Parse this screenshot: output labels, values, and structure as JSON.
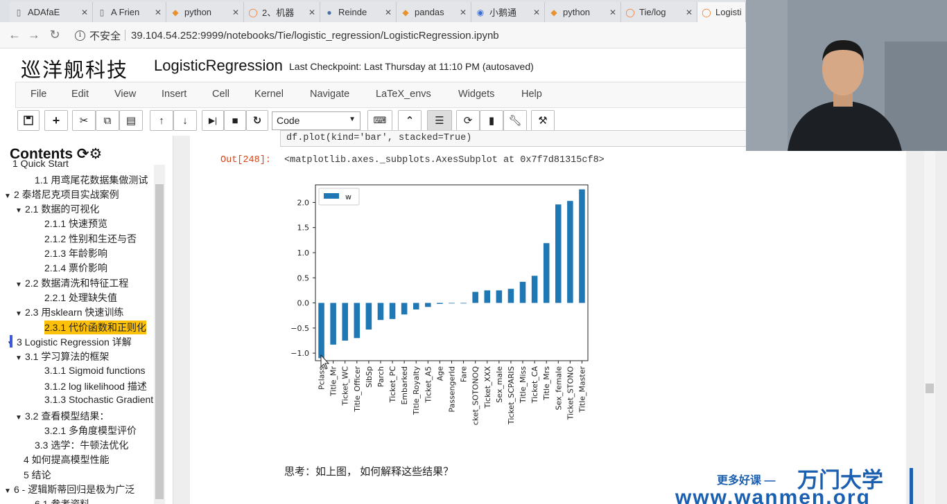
{
  "browser": {
    "tabs": [
      {
        "title": "ADAfaE",
        "icon": "document-icon",
        "active": false
      },
      {
        "title": "A Frien",
        "icon": "document-icon",
        "active": false
      },
      {
        "title": "python",
        "icon": "tag-icon",
        "active": false
      },
      {
        "title": "2、机器",
        "icon": "jupyter-icon",
        "active": false
      },
      {
        "title": "Reinde",
        "icon": "github-icon",
        "active": false
      },
      {
        "title": "pandas",
        "icon": "tag-icon",
        "active": false
      },
      {
        "title": "小鹅通",
        "icon": "chrome-icon",
        "active": false
      },
      {
        "title": "python",
        "icon": "tag-icon",
        "active": false
      },
      {
        "title": "Tie/log",
        "icon": "jupyter-icon",
        "active": false
      },
      {
        "title": "Logistic",
        "icon": "jupyter-icon",
        "active": true
      }
    ],
    "security_label": "不安全",
    "url": "39.104.54.252:9999/notebooks/Tie/logistic_regression/LogisticRegression.ipynb"
  },
  "header": {
    "logo_text": "巡洋舰科技",
    "notebook_title": "LogisticRegression",
    "checkpoint": "Last Checkpoint: Last Thursday at 11:10 PM (autosaved)"
  },
  "menu": [
    "File",
    "Edit",
    "View",
    "Insert",
    "Cell",
    "Kernel",
    "Navigate",
    "LaTeX_envs",
    "Widgets",
    "Help"
  ],
  "toolbar": {
    "cell_type": "Code"
  },
  "toc": {
    "title": "Contents",
    "items": [
      {
        "text": "1  Quick Start",
        "caret": ""
      },
      {
        "text": "1.1  用鸢尾花数据集做测试",
        "caret": ""
      },
      {
        "text": "2  泰塔尼克项目实战案例",
        "caret": "▼"
      },
      {
        "text": "2.1  数据的可视化",
        "caret": "▼"
      },
      {
        "text": "2.1.1  快速预览",
        "caret": ""
      },
      {
        "text": "2.1.2  性别和生还与否",
        "caret": ""
      },
      {
        "text": "2.1.3  年龄影响",
        "caret": ""
      },
      {
        "text": "2.1.4  票价影响",
        "caret": ""
      },
      {
        "text": "2.2  数据清洗和特征工程",
        "caret": "▼"
      },
      {
        "text": "2.2.1  处理缺失值",
        "caret": ""
      },
      {
        "text": "2.3  用sklearn 快速训练",
        "caret": "▼"
      },
      {
        "text": "2.3.1  代价函数和正则化",
        "caret": ""
      },
      {
        "text": "3  Logistic Regression 详解",
        "caret": "▼"
      },
      {
        "text": "3.1  学习算法的框架",
        "caret": "▼"
      },
      {
        "text": "3.1.1  Sigmoid functions",
        "caret": ""
      },
      {
        "text": "3.1.2  log likelihood 描述",
        "caret": ""
      },
      {
        "text": "3.1.3  Stochastic Gradient",
        "caret": ""
      },
      {
        "text": "3.2  查看模型结果：",
        "caret": "▼"
      },
      {
        "text": "3.2.1  多角度模型评价",
        "caret": ""
      },
      {
        "text": "3.3  选学：牛顿法优化",
        "caret": ""
      },
      {
        "text": "4  如何提高模型性能",
        "caret": ""
      },
      {
        "text": "5  结论",
        "caret": ""
      },
      {
        "text": "6  - 逻辑斯蒂回归是极为广泛",
        "caret": "▼"
      },
      {
        "text": "6.1  参考资料",
        "caret": ""
      }
    ]
  },
  "cell": {
    "code": "df.plot(kind='bar', stacked=True)",
    "out_prompt": "Out[248]:",
    "out_text": "<matplotlib.axes._subplots.AxesSubplot at 0x7f7d81315cf8>",
    "markdown": "思考：如上图， 如何解释这些结果？"
  },
  "chart_data": {
    "type": "bar",
    "title": "",
    "xlabel": "",
    "ylabel": "",
    "ylim": [
      -1.15,
      2.35
    ],
    "yticks": [
      -1.0,
      -0.5,
      0.0,
      0.5,
      1.0,
      1.5,
      2.0
    ],
    "ytick_labels": [
      "−1.0",
      "−0.5",
      "0.0",
      "0.5",
      "1.0",
      "1.5",
      "2.0"
    ],
    "legend_position": "upper-left",
    "bar_color": "#1f77b4",
    "categories": [
      "Pclass",
      "Title_Mr",
      "Ticket_WC",
      "Title_Officer",
      "SibSp",
      "Parch",
      "Ticket_PC",
      "Embarked",
      "Title_Royalty",
      "Ticket_A5",
      "Age",
      "PassengerId",
      "Fare",
      "Ticket_SOTONOQ",
      "Ticket_XXX",
      "Sex_male",
      "Ticket_SCPARIS",
      "Title_Miss",
      "Ticket_CA",
      "Title_Mrs",
      "Sex_female",
      "Ticket_STONO",
      "Title_Master"
    ],
    "series": [
      {
        "name": "w",
        "values": [
          -1.1,
          -0.83,
          -0.75,
          -0.7,
          -0.53,
          -0.34,
          -0.32,
          -0.23,
          -0.13,
          -0.08,
          -0.02,
          0.0,
          0.0,
          0.22,
          0.25,
          0.25,
          0.28,
          0.42,
          0.54,
          1.19,
          1.96,
          2.03,
          2.26
        ]
      }
    ]
  },
  "watermark": {
    "line1": "更多好课 —",
    "brand": "万门大学",
    "url": "www.wanmen.org"
  }
}
